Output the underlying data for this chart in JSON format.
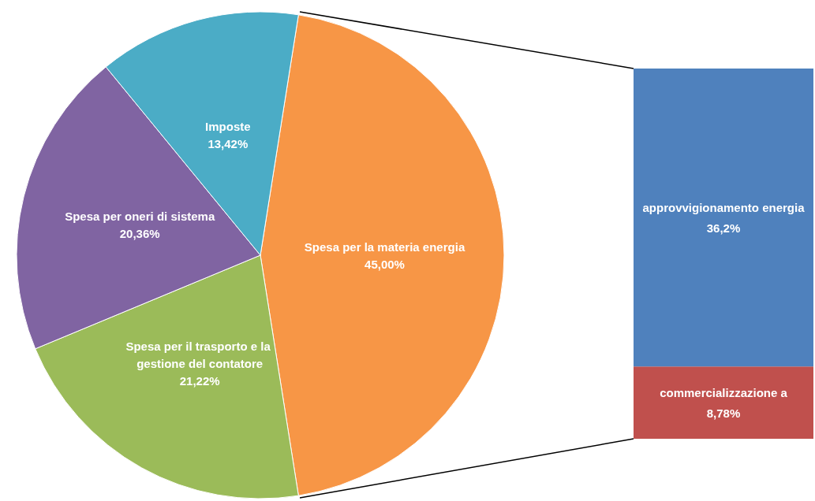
{
  "chart_data": [
    {
      "type": "pie",
      "categories": [
        "Spesa per la materia energia",
        "Spesa per il trasporto e la gestione del contatore",
        "Spesa per oneri di sistema",
        "Imposte"
      ],
      "values": [
        45.0,
        21.22,
        20.36,
        13.42
      ],
      "value_labels": [
        "45,00%",
        "21,22%",
        "20,36%",
        "13,42%"
      ],
      "colors": [
        "#f79646",
        "#9bbb59",
        "#8064a2",
        "#4bacc6"
      ],
      "legend": false
    },
    {
      "type": "bar",
      "stacked": true,
      "categories": [
        null
      ],
      "legend": false,
      "series": [
        {
          "name": "commercializzazione a",
          "color": "#c0504d",
          "values": [
            8.78
          ],
          "value_labels": [
            "8,78%"
          ]
        },
        {
          "name": "approvvigionamento energia",
          "color": "#4f81bd",
          "values": [
            36.2
          ],
          "value_labels": [
            "36,2%"
          ]
        }
      ]
    }
  ]
}
